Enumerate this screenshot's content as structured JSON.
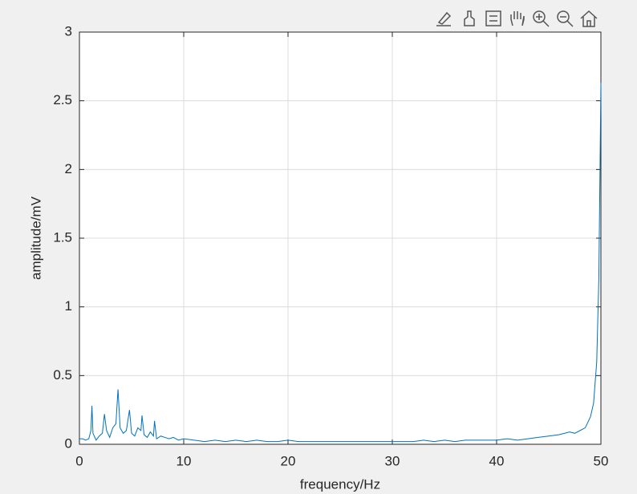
{
  "chart_data": {
    "type": "line",
    "xlabel": "frequency/Hz",
    "ylabel": "amplitude/mV",
    "x": [
      0,
      0.3,
      0.6,
      0.9,
      1.1,
      1.2,
      1.3,
      1.6,
      1.9,
      2.2,
      2.4,
      2.6,
      2.9,
      3.2,
      3.5,
      3.7,
      3.9,
      4.2,
      4.5,
      4.8,
      5.0,
      5.3,
      5.6,
      5.9,
      6.0,
      6.2,
      6.5,
      6.8,
      7.1,
      7.2,
      7.4,
      7.8,
      8.2,
      8.6,
      9.0,
      9.5,
      10,
      11,
      12,
      13,
      14,
      15,
      16,
      17,
      18,
      19,
      20,
      21,
      22,
      23,
      24,
      25,
      26,
      27,
      28,
      29,
      30,
      31,
      32,
      33,
      34,
      35,
      36,
      37,
      38,
      39,
      40,
      41,
      42,
      43,
      44,
      45,
      46,
      47,
      47.5,
      48,
      48.5,
      49,
      49.3,
      49.6,
      49.8,
      49.9,
      50
    ],
    "values": [
      0.04,
      0.04,
      0.03,
      0.04,
      0.1,
      0.28,
      0.08,
      0.03,
      0.06,
      0.08,
      0.22,
      0.1,
      0.05,
      0.12,
      0.15,
      0.4,
      0.12,
      0.08,
      0.1,
      0.25,
      0.08,
      0.06,
      0.12,
      0.1,
      0.21,
      0.07,
      0.05,
      0.09,
      0.06,
      0.17,
      0.04,
      0.06,
      0.05,
      0.04,
      0.05,
      0.03,
      0.04,
      0.03,
      0.02,
      0.03,
      0.02,
      0.03,
      0.02,
      0.03,
      0.02,
      0.02,
      0.03,
      0.02,
      0.02,
      0.02,
      0.02,
      0.02,
      0.02,
      0.02,
      0.02,
      0.02,
      0.02,
      0.02,
      0.02,
      0.03,
      0.02,
      0.03,
      0.02,
      0.03,
      0.03,
      0.03,
      0.03,
      0.04,
      0.03,
      0.04,
      0.05,
      0.06,
      0.07,
      0.09,
      0.08,
      0.1,
      0.12,
      0.2,
      0.3,
      0.6,
      1.2,
      1.9,
      2.63
    ],
    "color": "#0072bd",
    "xlim": [
      0,
      50
    ],
    "xticks": [
      0,
      10,
      20,
      30,
      40,
      50
    ],
    "ylim": [
      0,
      3
    ],
    "yticks": [
      0,
      0.5,
      1,
      1.5,
      2,
      2.5,
      3
    ],
    "grid": true
  }
}
